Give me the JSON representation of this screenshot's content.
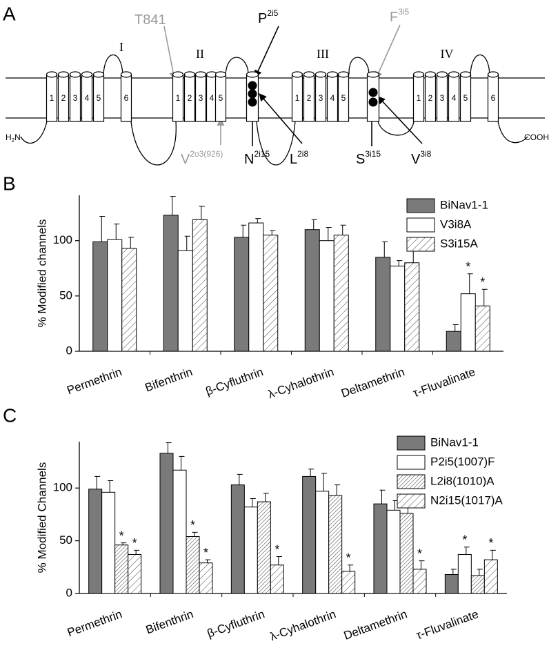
{
  "panels": [
    "A",
    "B",
    "C"
  ],
  "diagram": {
    "domains": [
      {
        "label": "I",
        "segments": [
          "1",
          "2",
          "3",
          "4",
          "5",
          "6"
        ]
      },
      {
        "label": "II",
        "segments": [
          "1",
          "2",
          "3",
          "4",
          "5"
        ]
      },
      {
        "label": "III",
        "segments": [
          "1",
          "2",
          "3",
          "4",
          "5"
        ]
      },
      {
        "label": "IV",
        "segments": [
          "1",
          "2",
          "3",
          "4",
          "5",
          "6"
        ]
      }
    ],
    "n_terminus": {
      "base": "H",
      "sub": "2",
      "rest": "N"
    },
    "c_terminus": "COOH",
    "residues": {
      "t841": {
        "base": "T841"
      },
      "p2i5": {
        "base": "P",
        "sup": "2i5"
      },
      "f3i5": {
        "base": "F",
        "sup": "3i5"
      },
      "v2o3": {
        "base": "V",
        "sup": "2o3(926)"
      },
      "n2i15": {
        "base": "N",
        "sup": "2i15"
      },
      "l2i8": {
        "base": "L",
        "sup": "2i8"
      },
      "s3i15": {
        "base": "S",
        "sup": "3i15"
      },
      "v3i8": {
        "base": "V",
        "sup": "3i8"
      }
    }
  },
  "chart_data": [
    {
      "type": "bar",
      "y_label": "% Modified channels",
      "categories": [
        "Permethrin",
        "Bifenthrin",
        "β-Cyfluthrin",
        "λ-Cyhalothrin",
        "Deltamethrin",
        "τ-Fluvalinate"
      ],
      "series": [
        {
          "name": "BiNav1-1",
          "color": "#7a7a7a",
          "values": [
            99,
            123,
            103,
            110,
            85,
            18
          ],
          "errors": [
            23,
            17,
            11,
            9,
            14,
            6
          ]
        },
        {
          "name": "V3i8A",
          "color": "#ffffff",
          "values": [
            101,
            91,
            116,
            100,
            77,
            52
          ],
          "errors": [
            14,
            13,
            4,
            12,
            5,
            18
          ],
          "markers": [
            null,
            null,
            null,
            null,
            null,
            "*"
          ]
        },
        {
          "name": "S3i15A",
          "color": "#444444",
          "pattern": "hatch",
          "values": [
            93,
            119,
            105,
            105,
            80,
            41
          ],
          "errors": [
            10,
            12,
            4,
            9,
            15,
            15
          ],
          "markers": [
            null,
            null,
            null,
            null,
            null,
            "*"
          ]
        }
      ],
      "ylim": [
        0,
        141
      ],
      "yticks": [
        0,
        50,
        100
      ]
    },
    {
      "type": "bar",
      "y_label": "% Modified Channels",
      "categories": [
        "Permethrin",
        "Bifenthrin",
        "β-Cyfluthrin",
        "λ-Cyhalothrin",
        "Deltamethrin",
        "τ-Fluvalinate"
      ],
      "series": [
        {
          "name": "BiNav1-1",
          "color": "#7a7a7a",
          "values": [
            99,
            133,
            103,
            111,
            85,
            18
          ],
          "errors": [
            12,
            10,
            10,
            7,
            13,
            5
          ]
        },
        {
          "name": "P2i5(1007)F",
          "color": "#ffffff",
          "values": [
            96,
            117,
            82,
            97,
            79,
            37
          ],
          "errors": [
            11,
            13,
            8,
            17,
            9,
            7
          ],
          "markers": [
            null,
            null,
            null,
            null,
            null,
            "*"
          ]
        },
        {
          "name": "L2i8(1010)A",
          "color": "#333333",
          "pattern": "dense-hatch",
          "values": [
            46,
            54,
            87,
            93,
            76,
            17
          ],
          "errors": [
            2,
            4,
            8,
            10,
            10,
            6
          ],
          "markers": [
            "*",
            "*",
            null,
            null,
            null,
            null
          ]
        },
        {
          "name": "N2i15(1017)A",
          "color": "#444444",
          "pattern": "hatch",
          "values": [
            37,
            29,
            27,
            21,
            23,
            32
          ],
          "errors": [
            4,
            3,
            8,
            6,
            8,
            9
          ],
          "markers": [
            "*",
            "*",
            "*",
            "*",
            "*",
            "*"
          ]
        }
      ],
      "ylim": [
        0,
        144
      ],
      "yticks": [
        0,
        50,
        100
      ]
    }
  ]
}
